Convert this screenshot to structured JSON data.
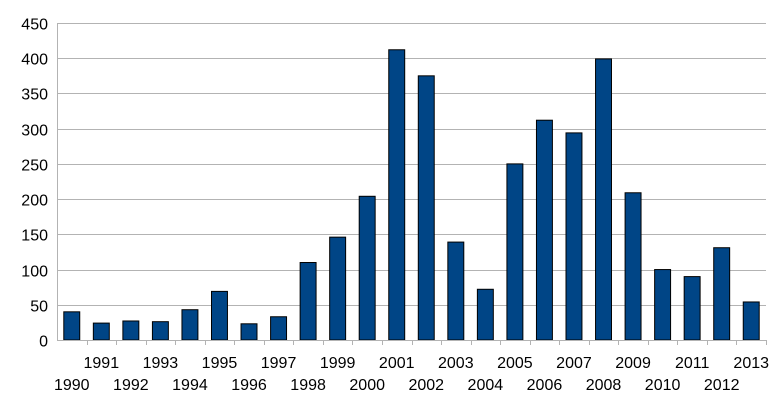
{
  "chart_data": {
    "type": "bar",
    "categories": [
      "1990",
      "1991",
      "1992",
      "1993",
      "1994",
      "1995",
      "1996",
      "1997",
      "1998",
      "1999",
      "2000",
      "2001",
      "2002",
      "2003",
      "2004",
      "2005",
      "2006",
      "2007",
      "2008",
      "2009",
      "2010",
      "2011",
      "2012",
      "2013"
    ],
    "values": [
      40,
      24,
      27,
      26,
      43,
      69,
      23,
      33,
      110,
      146,
      204,
      412,
      375,
      139,
      72,
      250,
      312,
      294,
      399,
      209,
      100,
      90,
      131,
      54
    ],
    "ylim": [
      0,
      450
    ],
    "yticks": [
      0,
      50,
      100,
      150,
      200,
      250,
      300,
      350,
      400,
      450
    ],
    "grid": true,
    "bar_color": "#004586",
    "grid_color": "#b3b3b3",
    "axis_color": "#b3b3b3"
  }
}
